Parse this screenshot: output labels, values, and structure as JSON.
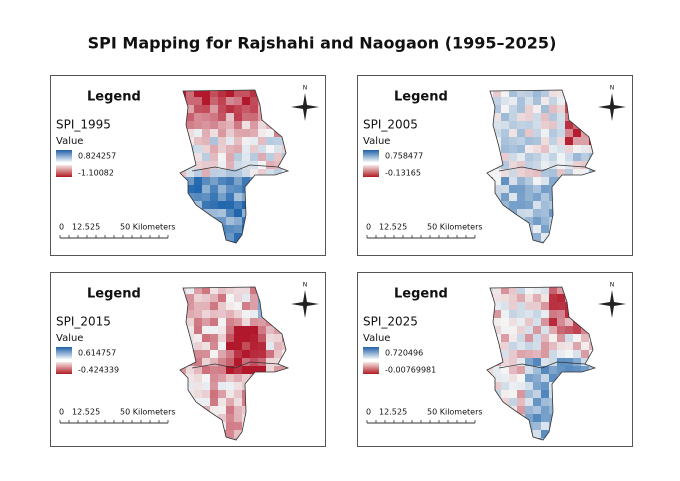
{
  "title": "SPI Mapping for Rajshahi and Naogaon (1995–2025)",
  "panels": [
    {
      "legend_title": "Legend",
      "layer": "SPI_1995",
      "field": "Value",
      "max": "0.824257",
      "min": "-1.10082",
      "north": "N",
      "scale": [
        "0",
        "12.5",
        "25",
        "50 Kilometers"
      ]
    },
    {
      "legend_title": "Legend",
      "layer": "SPI_2005",
      "field": "Value",
      "max": "0.758477",
      "min": "-0.13165",
      "north": "N",
      "scale": [
        "0",
        "12.5",
        "25",
        "50 Kilometers"
      ]
    },
    {
      "legend_title": "Legend",
      "layer": "SPI_2015",
      "field": "Value",
      "max": "0.614757",
      "min": "-0.424339",
      "north": "N",
      "scale": [
        "0",
        "12.5",
        "25",
        "50 Kilometers"
      ]
    },
    {
      "legend_title": "Legend",
      "layer": "SPI_2025",
      "field": "Value",
      "max": "0.720496",
      "min": "-0.00769981",
      "north": "N",
      "scale": [
        "0",
        "12.5",
        "25",
        "50 Kilometers"
      ]
    }
  ]
}
